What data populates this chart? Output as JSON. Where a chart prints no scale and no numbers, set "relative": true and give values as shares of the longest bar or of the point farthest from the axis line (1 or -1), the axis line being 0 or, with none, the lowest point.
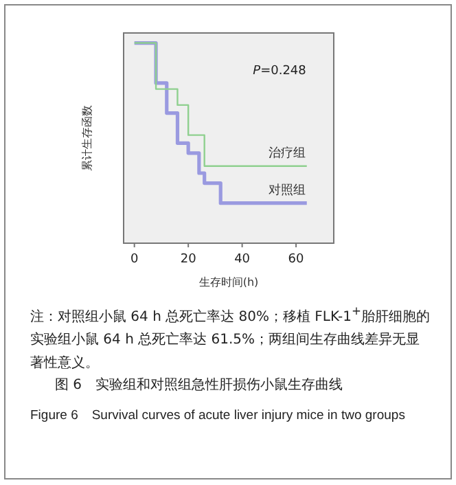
{
  "chart_data": {
    "type": "step",
    "relative": true,
    "title": "图 6　实验组和对照组急性肝损伤小鼠生存曲线",
    "subtitle": "Figure 6　Survival curves of acute liver injury mice in two groups",
    "xlabel": "生存时间(h)",
    "ylabel": "累计生存函数",
    "xlim": [
      -4,
      74
    ],
    "xticks": [
      0,
      20,
      40,
      60
    ],
    "grid": false,
    "annotations": [
      "*P*=0.248",
      "注：对照组小鼠 64 h 总死亡率达 80%；移植 FLK-1$^{+}$胎肝细胞的实验组小鼠 64 h 总死亡率达 61.5%；两组间生存曲线差异无显著性意义。"
    ],
    "series": [
      {
        "name": "治疗组",
        "color": "#8fd08f",
        "x": [
          0,
          8,
          16,
          20,
          26,
          64
        ],
        "values": [
          1,
          0.77,
          0.69,
          0.54,
          0.385,
          0.385
        ]
      },
      {
        "name": "对照组",
        "color": "#9a9ae0",
        "x": [
          0,
          8,
          12,
          16,
          20,
          24,
          26,
          32,
          64
        ],
        "values": [
          1,
          0.8,
          0.65,
          0.5,
          0.45,
          0.35,
          0.3,
          0.2,
          0.2
        ]
      }
    ]
  }
}
